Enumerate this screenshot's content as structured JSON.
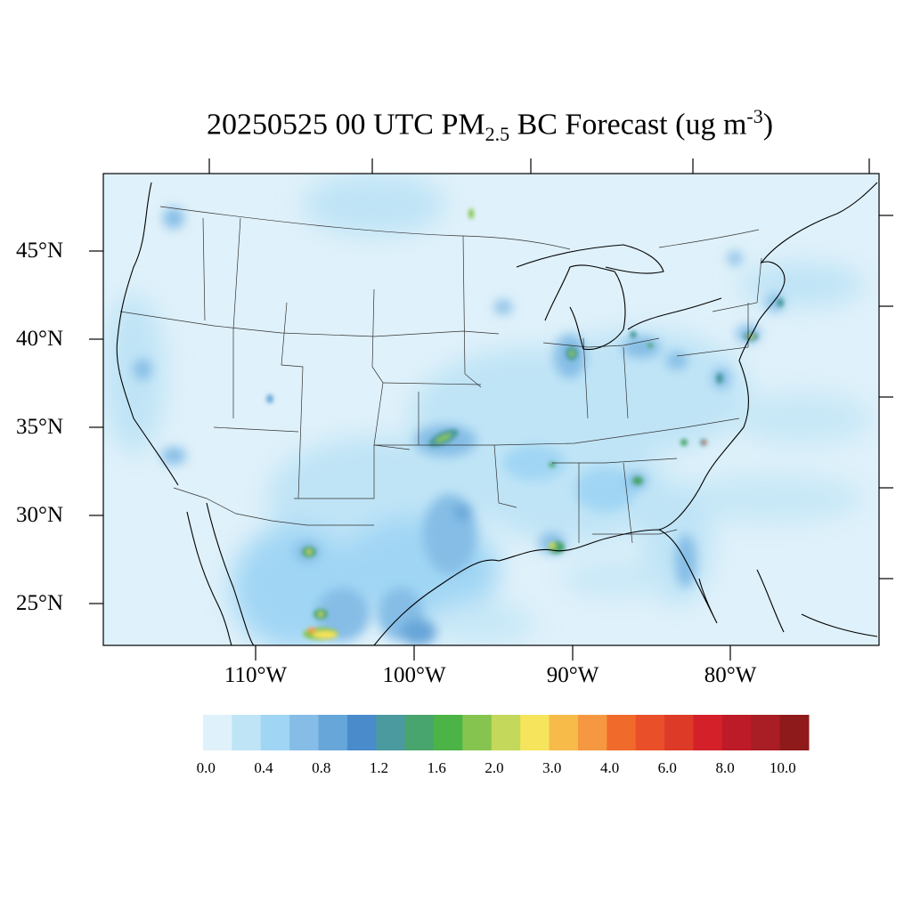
{
  "title": {
    "prefix": "20250525 00 UTC PM",
    "subscript": "2.5",
    "middle": " BC Forecast (ug m",
    "superscript": "-3",
    "suffix": ")"
  },
  "map": {
    "projection": "lambert-conformal",
    "region": "contiguous United States",
    "variable": "PM2.5 black carbon",
    "hotspots_description": "light blue background with higher concentrations near cities"
  },
  "latitude_labels": [
    "45°N",
    "40°N",
    "35°N",
    "30°N",
    "25°N"
  ],
  "longitude_labels": [
    "110°W",
    "100°W",
    "90°W",
    "80°W"
  ],
  "colorbar": {
    "colors": [
      "#dff1fa",
      "#bfe4f6",
      "#a0d6f4",
      "#85bde6",
      "#67a6d9",
      "#4a8bcc",
      "#4a9a9f",
      "#49a56e",
      "#4cb446",
      "#86c450",
      "#c4d85b",
      "#f6e45c",
      "#f7bb4a",
      "#f59841",
      "#f06b2b",
      "#e9502a",
      "#de3a28",
      "#d42129",
      "#bd1b27",
      "#a91d24",
      "#8f1a1b"
    ],
    "tick_labels": [
      "0.0",
      "0.4",
      "0.8",
      "1.2",
      "1.6",
      "2.0",
      "3.0",
      "4.0",
      "6.0",
      "8.0",
      "10.0"
    ]
  }
}
